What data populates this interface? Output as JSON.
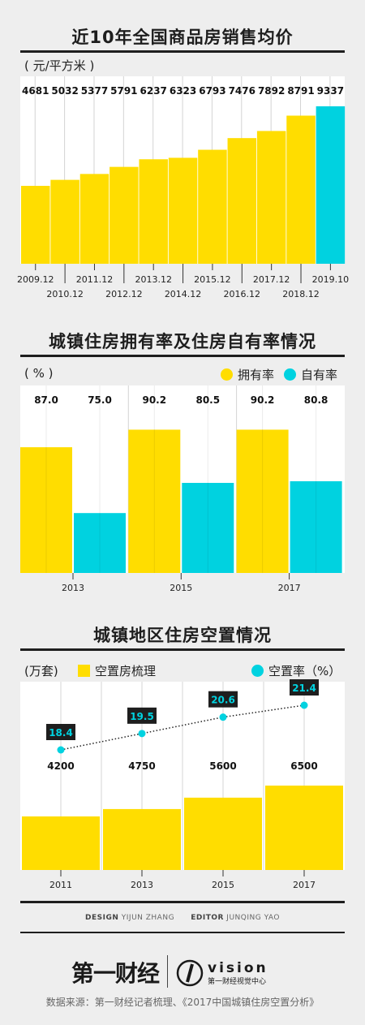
{
  "colors": {
    "yellow": "#ffdd00",
    "cyan": "#00d2e0",
    "dark": "#1e1e1e",
    "panel": "#ffffff",
    "bg": "#eeeeee"
  },
  "chart_data": [
    {
      "type": "bar",
      "title": "近10年全国商品房销售均价",
      "unit": "( 元/平方米 )",
      "categories": [
        "2009.12",
        "2010.12",
        "2011.12",
        "2012.12",
        "2013.12",
        "2014.12",
        "2015.12",
        "2016.12",
        "2017.12",
        "2018.12",
        "2019.10"
      ],
      "values": [
        4681,
        5032,
        5377,
        5791,
        6237,
        6323,
        6793,
        7476,
        7892,
        8791,
        9337
      ],
      "labels": [
        "4681",
        "5032",
        "5377",
        "5791",
        "6237",
        "6323",
        "6793",
        "7476",
        "7892",
        "8791",
        "9337"
      ],
      "highlight_index": 10
    },
    {
      "type": "bar",
      "title": "城镇住房拥有率及住房自有率情况",
      "unit": "( % )",
      "categories": [
        "2013",
        "2015",
        "2017"
      ],
      "series": [
        {
          "name": "拥有率",
          "values": [
            87.0,
            90.2,
            90.2
          ],
          "labels": [
            "87.0",
            "90.2",
            "90.2"
          ]
        },
        {
          "name": "自有率",
          "values": [
            75.0,
            80.5,
            80.8
          ],
          "labels": [
            "75.0",
            "80.5",
            "80.8"
          ]
        }
      ]
    },
    {
      "type": "bar",
      "title": "城镇地区住房空置情况",
      "unit": "(万套)",
      "categories": [
        "2011",
        "2013",
        "2015",
        "2017"
      ],
      "series": [
        {
          "name": "空置房梳理",
          "values": [
            4200,
            4750,
            5600,
            6500
          ],
          "labels": [
            "4200",
            "4750",
            "5600",
            "6500"
          ]
        },
        {
          "name": "空置率（%）",
          "values": [
            18.4,
            19.5,
            20.6,
            21.4
          ],
          "labels": [
            "18.4",
            "19.5",
            "20.6",
            "21.4"
          ]
        }
      ]
    }
  ],
  "credits": {
    "design_label": "DESIGN",
    "design_name": "YIJUN ZHANG",
    "editor_label": "EDITOR",
    "editor_name": "JUNQING YAO"
  },
  "logos": {
    "brand": "第一财经",
    "vision": "vision",
    "vision_sub": "第一财经视觉中心"
  },
  "source": "数据来源：第一财经记者梳理、《2017中国城镇住房空置分析》"
}
